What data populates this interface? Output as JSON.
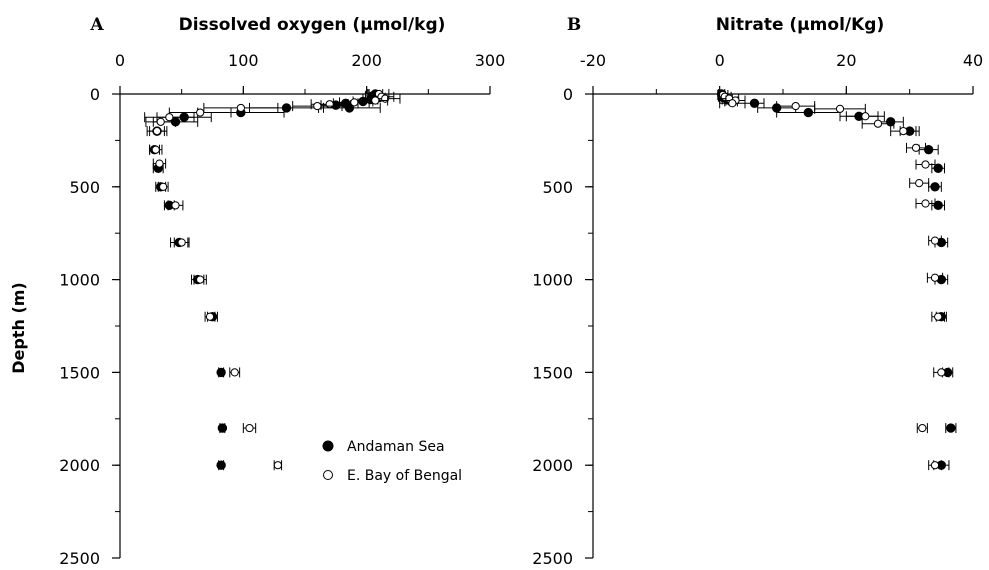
{
  "figure": {
    "ylabel": "Depth (m)",
    "legend": [
      {
        "label": "Andaman Sea",
        "marker": "filled",
        "color": "#000000"
      },
      {
        "label": "E. Bay of Bengal",
        "marker": "open",
        "color": "#000000"
      }
    ]
  },
  "chart_data": [
    {
      "type": "scatter",
      "panel_label": "A",
      "title": "Dissolved oxygen (µmol/kg)",
      "xlabel": "Dissolved oxygen (µmol/kg)",
      "ylabel": "Depth (m)",
      "xlim": [
        0,
        300
      ],
      "ylim": [
        0,
        2500
      ],
      "y_inverted": true,
      "x_axis_position": "top",
      "x_ticks": [
        0,
        100,
        200,
        300
      ],
      "y_ticks": [
        0,
        500,
        1000,
        1500,
        2000,
        2500
      ],
      "grid": false,
      "legend_position": "bottom-right",
      "series": [
        {
          "name": "Andaman Sea",
          "marker": "filled",
          "points": [
            {
              "x": 207,
              "y": 0,
              "err": 6
            },
            {
              "x": 205,
              "y": 10,
              "err": 6
            },
            {
              "x": 210,
              "y": 20,
              "err": 5
            },
            {
              "x": 203,
              "y": 30,
              "err": 6
            },
            {
              "x": 197,
              "y": 40,
              "err": 8
            },
            {
              "x": 183,
              "y": 50,
              "err": 10
            },
            {
              "x": 175,
              "y": 60,
              "err": 12
            },
            {
              "x": 186,
              "y": 75,
              "err": 25
            },
            {
              "x": 135,
              "y": 75,
              "err": 30
            },
            {
              "x": 98,
              "y": 100,
              "err": 35
            },
            {
              "x": 52,
              "y": 125,
              "err": 22
            },
            {
              "x": 45,
              "y": 150,
              "err": 18
            },
            {
              "x": 30,
              "y": 200,
              "err": 8
            },
            {
              "x": 28,
              "y": 300,
              "err": 4
            },
            {
              "x": 31,
              "y": 400,
              "err": 4
            },
            {
              "x": 33,
              "y": 500,
              "err": 4
            },
            {
              "x": 40,
              "y": 600,
              "err": 4
            },
            {
              "x": 48,
              "y": 800,
              "err": 7
            },
            {
              "x": 63,
              "y": 1000,
              "err": 5
            },
            {
              "x": 75,
              "y": 1200,
              "err": 4
            },
            {
              "x": 82,
              "y": 1500,
              "err": 2
            },
            {
              "x": 83,
              "y": 1800,
              "err": 2
            },
            {
              "x": 82,
              "y": 2000,
              "err": 2
            }
          ]
        },
        {
          "name": "E. Bay of Bengal",
          "marker": "open",
          "points": [
            {
              "x": 210,
              "y": 0,
              "err": 8
            },
            {
              "x": 212,
              "y": 15,
              "err": 10
            },
            {
              "x": 215,
              "y": 25,
              "err": 12
            },
            {
              "x": 207,
              "y": 35,
              "err": 10
            },
            {
              "x": 190,
              "y": 45,
              "err": 12
            },
            {
              "x": 170,
              "y": 55,
              "err": 15
            },
            {
              "x": 160,
              "y": 65,
              "err": 20
            },
            {
              "x": 98,
              "y": 75,
              "err": 30
            },
            {
              "x": 65,
              "y": 100,
              "err": 25
            },
            {
              "x": 40,
              "y": 125,
              "err": 20
            },
            {
              "x": 33,
              "y": 150,
              "err": 12
            },
            {
              "x": 30,
              "y": 200,
              "err": 6
            },
            {
              "x": 29,
              "y": 300,
              "err": 5
            },
            {
              "x": 32,
              "y": 375,
              "err": 5
            },
            {
              "x": 35,
              "y": 500,
              "err": 4
            },
            {
              "x": 45,
              "y": 600,
              "err": 6
            },
            {
              "x": 50,
              "y": 800,
              "err": 6
            },
            {
              "x": 65,
              "y": 1000,
              "err": 5
            },
            {
              "x": 73,
              "y": 1200,
              "err": 4
            },
            {
              "x": 93,
              "y": 1500,
              "err": 4
            },
            {
              "x": 105,
              "y": 1800,
              "err": 5
            },
            {
              "x": 128,
              "y": 2000,
              "err": 3
            }
          ]
        }
      ]
    },
    {
      "type": "scatter",
      "panel_label": "B",
      "title": "Nitrate (µmol/Kg)",
      "xlabel": "Nitrate (µmol/Kg)",
      "ylabel": "",
      "xlim": [
        -20,
        40
      ],
      "ylim": [
        0,
        2500
      ],
      "y_inverted": true,
      "x_axis_position": "top",
      "x_ticks": [
        -20,
        0,
        20,
        40
      ],
      "y_ticks": [
        0,
        500,
        1000,
        1500,
        2000,
        2500
      ],
      "grid": false,
      "series": [
        {
          "name": "Andaman Sea",
          "marker": "filled",
          "points": [
            {
              "x": 0.3,
              "y": 0,
              "err": 0.5
            },
            {
              "x": 0.4,
              "y": 10,
              "err": 0.5
            },
            {
              "x": 0.6,
              "y": 20,
              "err": 0.6
            },
            {
              "x": 1.2,
              "y": 30,
              "err": 0.8
            },
            {
              "x": 1.8,
              "y": 40,
              "err": 1
            },
            {
              "x": 5.5,
              "y": 50,
              "err": 1.5
            },
            {
              "x": 9,
              "y": 75,
              "err": 3
            },
            {
              "x": 14,
              "y": 100,
              "err": 5
            },
            {
              "x": 22,
              "y": 120,
              "err": 3
            },
            {
              "x": 27,
              "y": 150,
              "err": 2
            },
            {
              "x": 30,
              "y": 200,
              "err": 1.5
            },
            {
              "x": 33,
              "y": 300,
              "err": 1.5
            },
            {
              "x": 34.5,
              "y": 400,
              "err": 1
            },
            {
              "x": 34,
              "y": 500,
              "err": 1
            },
            {
              "x": 34.5,
              "y": 600,
              "err": 1
            },
            {
              "x": 35,
              "y": 800,
              "err": 1
            },
            {
              "x": 35,
              "y": 1000,
              "err": 1
            },
            {
              "x": 35,
              "y": 1200,
              "err": 0.8
            },
            {
              "x": 36,
              "y": 1500,
              "err": 0.8
            },
            {
              "x": 36.5,
              "y": 1800,
              "err": 0.8
            },
            {
              "x": 35,
              "y": 2000,
              "err": 1.2
            }
          ]
        },
        {
          "name": "E. Bay of Bengal",
          "marker": "open",
          "points": [
            {
              "x": 0.5,
              "y": 5,
              "err": 0.8
            },
            {
              "x": 0.8,
              "y": 15,
              "err": 1
            },
            {
              "x": 1.5,
              "y": 25,
              "err": 1.5
            },
            {
              "x": 2.5,
              "y": 35,
              "err": 1.5
            },
            {
              "x": 2,
              "y": 50,
              "err": 2
            },
            {
              "x": 12,
              "y": 65,
              "err": 3
            },
            {
              "x": 19,
              "y": 80,
              "err": 4
            },
            {
              "x": 23,
              "y": 120,
              "err": 3
            },
            {
              "x": 25,
              "y": 160,
              "err": 2.5
            },
            {
              "x": 29,
              "y": 200,
              "err": 2
            },
            {
              "x": 31,
              "y": 290,
              "err": 1.5
            },
            {
              "x": 32.5,
              "y": 380,
              "err": 1.5
            },
            {
              "x": 31.5,
              "y": 480,
              "err": 1.5
            },
            {
              "x": 32.5,
              "y": 590,
              "err": 1.5
            },
            {
              "x": 34,
              "y": 790,
              "err": 1
            },
            {
              "x": 34,
              "y": 990,
              "err": 1.2
            },
            {
              "x": 34.5,
              "y": 1200,
              "err": 1
            },
            {
              "x": 35,
              "y": 1500,
              "err": 1.2
            },
            {
              "x": 32,
              "y": 1800,
              "err": 0.8
            },
            {
              "x": 34,
              "y": 2000,
              "err": 1
            }
          ]
        }
      ]
    }
  ]
}
